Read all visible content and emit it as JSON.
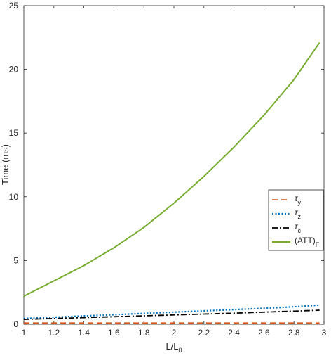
{
  "chart_data": {
    "type": "line",
    "xlabel": "L/L",
    "xlabel_sub": "0",
    "ylabel": "Time (ms)",
    "xlim": [
      1,
      3
    ],
    "ylim": [
      0,
      25
    ],
    "xticks": [
      1,
      1.2,
      1.4,
      1.6,
      1.8,
      2,
      2.2,
      2.4,
      2.6,
      2.8,
      3
    ],
    "xtick_labels": [
      "1",
      "1.2",
      "1.4",
      "1.6",
      "1.8",
      "2",
      "2.2",
      "2.4",
      "2.6",
      "2.8",
      "3"
    ],
    "yticks": [
      0,
      5,
      10,
      15,
      20,
      25
    ],
    "ytick_labels": [
      "0",
      "5",
      "10",
      "15",
      "20",
      "25"
    ],
    "grid": false,
    "legend_position": "right",
    "x": [
      1.0,
      1.2,
      1.4,
      1.6,
      1.8,
      2.0,
      2.2,
      2.4,
      2.6,
      2.8,
      2.97
    ],
    "series": [
      {
        "name": "τ",
        "name_sub": "y",
        "color": "#d95319",
        "dash": "dashed",
        "values": [
          0.1,
          0.1,
          0.1,
          0.1,
          0.1,
          0.1,
          0.1,
          0.1,
          0.1,
          0.1,
          0.1
        ]
      },
      {
        "name": "τ",
        "name_sub": "z",
        "color": "#0072bd",
        "dash": "dotted",
        "values": [
          0.45,
          0.55,
          0.65,
          0.75,
          0.85,
          0.95,
          1.05,
          1.15,
          1.25,
          1.37,
          1.5
        ]
      },
      {
        "name": "τ",
        "name_sub": "c",
        "color": "#000000",
        "dash": "dashdot",
        "values": [
          0.38,
          0.45,
          0.52,
          0.59,
          0.66,
          0.73,
          0.8,
          0.87,
          0.95,
          1.03,
          1.1
        ]
      },
      {
        "name": "(ATT)",
        "name_sub": "F",
        "color": "#77ac30",
        "dash": "solid",
        "values": [
          2.2,
          3.4,
          4.6,
          6.0,
          7.6,
          9.5,
          11.6,
          13.9,
          16.4,
          19.2,
          22.1
        ]
      }
    ]
  }
}
